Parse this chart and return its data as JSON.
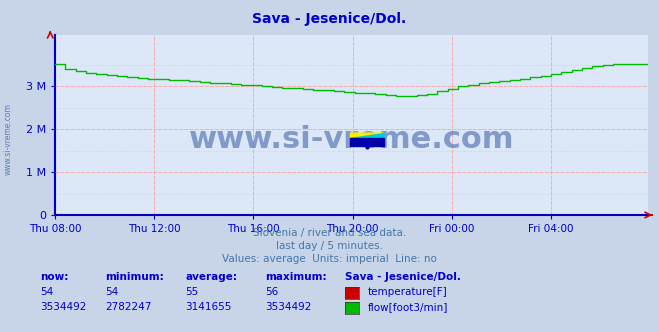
{
  "title": "Sava - Jesenice/Dol.",
  "title_color": "#0000cc",
  "bg_color": "#c8d4e8",
  "plot_bg_color": "#dce8f8",
  "grid_color_major": "#ffaaaa",
  "grid_color_minor": "#bbccdd",
  "ylim": [
    0,
    4200000
  ],
  "yticks": [
    0,
    1000000,
    2000000,
    3000000
  ],
  "ytick_labels": [
    "0",
    "1 M",
    "2 M",
    "3 M"
  ],
  "xtick_labels": [
    "Thu 08:00",
    "Thu 12:00",
    "Thu 16:00",
    "Thu 20:00",
    "Fri 00:00",
    "Fri 04:00"
  ],
  "xtick_positions": [
    0,
    48,
    96,
    144,
    192,
    240
  ],
  "total_points": 288,
  "flow_color": "#00bb00",
  "temp_color": "#cc0000",
  "axis_color": "#0000cc",
  "tick_color": "#0000cc",
  "watermark": "www.si-vreme.com",
  "watermark_color": "#4466aa",
  "subtitle1": "Slovenia / river and sea data.",
  "subtitle2": "last day / 5 minutes.",
  "subtitle3": "Values: average  Units: imperial  Line: no",
  "subtitle_color": "#4477aa",
  "legend_title": "Sava - Jesenice/Dol.",
  "legend_color": "#0000cc",
  "temp_now": 54,
  "temp_min": 54,
  "temp_avg": 55,
  "temp_max": 56,
  "flow_now": 3534492,
  "flow_min": 2782247,
  "flow_avg": 3141655,
  "flow_max": 3534492,
  "flow_data_key_points": [
    [
      0,
      3534492
    ],
    [
      4,
      3420000
    ],
    [
      8,
      3370000
    ],
    [
      12,
      3340000
    ],
    [
      16,
      3310000
    ],
    [
      20,
      3290000
    ],
    [
      24,
      3270000
    ],
    [
      30,
      3240000
    ],
    [
      36,
      3210000
    ],
    [
      42,
      3190000
    ],
    [
      48,
      3180000
    ],
    [
      54,
      3160000
    ],
    [
      60,
      3140000
    ],
    [
      66,
      3120000
    ],
    [
      72,
      3100000
    ],
    [
      78,
      3080000
    ],
    [
      84,
      3060000
    ],
    [
      90,
      3040000
    ],
    [
      96,
      3020000
    ],
    [
      102,
      3000000
    ],
    [
      108,
      2980000
    ],
    [
      114,
      2960000
    ],
    [
      120,
      2940000
    ],
    [
      126,
      2920000
    ],
    [
      132,
      2900000
    ],
    [
      138,
      2880000
    ],
    [
      144,
      2860000
    ],
    [
      148,
      2845000
    ],
    [
      152,
      2830000
    ],
    [
      156,
      2815000
    ],
    [
      160,
      2800000
    ],
    [
      163,
      2790000
    ],
    [
      165,
      2785000
    ],
    [
      167,
      2782247
    ],
    [
      169,
      2785000
    ],
    [
      171,
      2790000
    ],
    [
      174,
      2800000
    ],
    [
      178,
      2820000
    ],
    [
      182,
      2850000
    ],
    [
      186,
      2900000
    ],
    [
      190,
      2950000
    ],
    [
      192,
      2980000
    ],
    [
      196,
      3010000
    ],
    [
      200,
      3040000
    ],
    [
      204,
      3070000
    ],
    [
      208,
      3100000
    ],
    [
      212,
      3120000
    ],
    [
      216,
      3140000
    ],
    [
      220,
      3160000
    ],
    [
      224,
      3180000
    ],
    [
      228,
      3200000
    ],
    [
      232,
      3220000
    ],
    [
      236,
      3250000
    ],
    [
      240,
      3280000
    ],
    [
      244,
      3320000
    ],
    [
      248,
      3360000
    ],
    [
      252,
      3400000
    ],
    [
      256,
      3440000
    ],
    [
      260,
      3470000
    ],
    [
      264,
      3490000
    ],
    [
      268,
      3510000
    ],
    [
      272,
      3520000
    ],
    [
      276,
      3525000
    ],
    [
      280,
      3528000
    ],
    [
      284,
      3531000
    ],
    [
      287,
      3534492
    ]
  ]
}
